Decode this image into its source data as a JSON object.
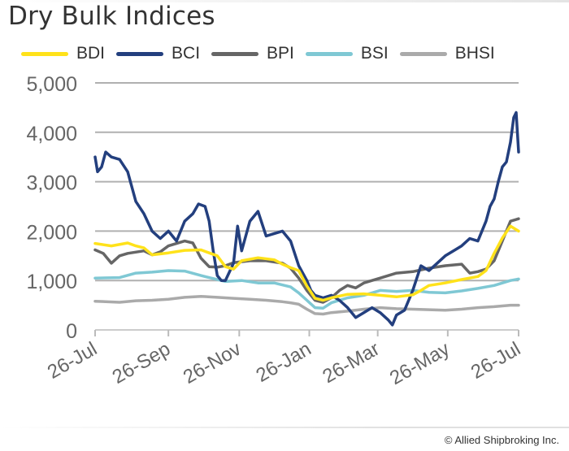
{
  "chart_data": {
    "type": "line",
    "title": "Dry Bulk Indices",
    "xlabel": "",
    "ylabel": "",
    "ylim": [
      0,
      5000
    ],
    "yticks": [
      0,
      1000,
      2000,
      3000,
      4000,
      5000
    ],
    "ytick_labels": [
      "0",
      "1,000",
      "2,000",
      "3,000",
      "4,000",
      "5,000"
    ],
    "xtick_labels": [
      "26-Jul",
      "26-Sep",
      "26-Nov",
      "26-Jan",
      "26-Mar",
      "26-May",
      "26-Jul"
    ],
    "xtick_weeks": [
      0,
      9,
      17.7,
      26.3,
      34.7,
      43.3,
      52
    ],
    "grid": "horizontal",
    "legend_position": "top",
    "series": [
      {
        "name": "BDI",
        "color": "#FFE21A",
        "points": [
          [
            0,
            1750
          ],
          [
            2,
            1700
          ],
          [
            4,
            1760
          ],
          [
            5,
            1700
          ],
          [
            6,
            1660
          ],
          [
            7,
            1520
          ],
          [
            9,
            1560
          ],
          [
            11,
            1610
          ],
          [
            13,
            1620
          ],
          [
            14,
            1560
          ],
          [
            15,
            1500
          ],
          [
            16,
            1280
          ],
          [
            17,
            1230
          ],
          [
            18,
            1400
          ],
          [
            20,
            1460
          ],
          [
            22,
            1420
          ],
          [
            23,
            1330
          ],
          [
            24,
            1260
          ],
          [
            25,
            1200
          ],
          [
            26,
            890
          ],
          [
            27,
            640
          ],
          [
            28,
            600
          ],
          [
            29,
            650
          ],
          [
            31,
            720
          ],
          [
            33,
            730
          ],
          [
            35,
            700
          ],
          [
            37,
            670
          ],
          [
            39,
            710
          ],
          [
            40,
            800
          ],
          [
            41,
            900
          ],
          [
            43,
            950
          ],
          [
            45,
            1020
          ],
          [
            47,
            1080
          ],
          [
            48,
            1200
          ],
          [
            49,
            1550
          ],
          [
            50,
            1860
          ],
          [
            51,
            2100
          ],
          [
            52,
            2000
          ]
        ]
      },
      {
        "name": "BCI",
        "color": "#233F7E",
        "points": [
          [
            0,
            3500
          ],
          [
            0.3,
            3200
          ],
          [
            0.8,
            3300
          ],
          [
            1.3,
            3600
          ],
          [
            2,
            3500
          ],
          [
            3,
            3450
          ],
          [
            4,
            3200
          ],
          [
            5,
            2600
          ],
          [
            6,
            2350
          ],
          [
            7,
            2000
          ],
          [
            8,
            1850
          ],
          [
            9,
            2000
          ],
          [
            10,
            1800
          ],
          [
            11,
            2200
          ],
          [
            12,
            2350
          ],
          [
            12.7,
            2550
          ],
          [
            13.5,
            2500
          ],
          [
            14,
            2200
          ],
          [
            14.5,
            1600
          ],
          [
            15,
            1100
          ],
          [
            15.5,
            1000
          ],
          [
            16,
            1000
          ],
          [
            17,
            1350
          ],
          [
            17.5,
            2100
          ],
          [
            18,
            1600
          ],
          [
            19,
            2200
          ],
          [
            20,
            2400
          ],
          [
            21,
            1900
          ],
          [
            22,
            1950
          ],
          [
            23,
            2000
          ],
          [
            24,
            1800
          ],
          [
            25,
            1300
          ],
          [
            26,
            1000
          ],
          [
            26.5,
            800
          ],
          [
            27,
            700
          ],
          [
            28,
            650
          ],
          [
            29,
            700
          ],
          [
            30,
            600
          ],
          [
            31,
            450
          ],
          [
            32,
            250
          ],
          [
            33,
            350
          ],
          [
            34,
            450
          ],
          [
            35,
            350
          ],
          [
            36,
            200
          ],
          [
            36.5,
            100
          ],
          [
            37,
            300
          ],
          [
            38,
            400
          ],
          [
            39,
            800
          ],
          [
            40,
            1300
          ],
          [
            41,
            1200
          ],
          [
            42,
            1350
          ],
          [
            43,
            1500
          ],
          [
            44,
            1600
          ],
          [
            45,
            1700
          ],
          [
            46,
            1850
          ],
          [
            47,
            1800
          ],
          [
            48,
            2200
          ],
          [
            48.5,
            2500
          ],
          [
            49,
            2650
          ],
          [
            49.5,
            3000
          ],
          [
            50,
            3300
          ],
          [
            50.5,
            3400
          ],
          [
            51,
            3800
          ],
          [
            51.4,
            4300
          ],
          [
            51.7,
            4400
          ],
          [
            52,
            3600
          ]
        ]
      },
      {
        "name": "BPI",
        "color": "#666666",
        "points": [
          [
            0,
            1620
          ],
          [
            1,
            1550
          ],
          [
            2,
            1350
          ],
          [
            3,
            1500
          ],
          [
            4,
            1550
          ],
          [
            6,
            1600
          ],
          [
            7,
            1520
          ],
          [
            8,
            1580
          ],
          [
            9,
            1700
          ],
          [
            11,
            1800
          ],
          [
            12,
            1760
          ],
          [
            13,
            1450
          ],
          [
            14,
            1280
          ],
          [
            15,
            1270
          ],
          [
            16,
            1300
          ],
          [
            17,
            1360
          ],
          [
            19,
            1400
          ],
          [
            21,
            1400
          ],
          [
            23,
            1350
          ],
          [
            24,
            1250
          ],
          [
            25,
            1050
          ],
          [
            26,
            800
          ],
          [
            27,
            600
          ],
          [
            28,
            560
          ],
          [
            29,
            650
          ],
          [
            30,
            800
          ],
          [
            31,
            900
          ],
          [
            32,
            850
          ],
          [
            33,
            950
          ],
          [
            35,
            1050
          ],
          [
            37,
            1150
          ],
          [
            39,
            1180
          ],
          [
            41,
            1250
          ],
          [
            43,
            1300
          ],
          [
            45,
            1330
          ],
          [
            46,
            1150
          ],
          [
            47,
            1180
          ],
          [
            48,
            1230
          ],
          [
            49,
            1400
          ],
          [
            50,
            1800
          ],
          [
            51,
            2200
          ],
          [
            52,
            2250
          ]
        ]
      },
      {
        "name": "BSI",
        "color": "#7FC8D4",
        "points": [
          [
            0,
            1050
          ],
          [
            3,
            1060
          ],
          [
            5,
            1150
          ],
          [
            7,
            1170
          ],
          [
            9,
            1200
          ],
          [
            11,
            1190
          ],
          [
            13,
            1100
          ],
          [
            14,
            1060
          ],
          [
            16,
            980
          ],
          [
            18,
            1000
          ],
          [
            20,
            950
          ],
          [
            22,
            950
          ],
          [
            24,
            870
          ],
          [
            25,
            750
          ],
          [
            26,
            600
          ],
          [
            27,
            450
          ],
          [
            28,
            440
          ],
          [
            29,
            550
          ],
          [
            31,
            650
          ],
          [
            33,
            700
          ],
          [
            35,
            800
          ],
          [
            37,
            780
          ],
          [
            39,
            800
          ],
          [
            41,
            760
          ],
          [
            43,
            750
          ],
          [
            45,
            790
          ],
          [
            47,
            840
          ],
          [
            49,
            900
          ],
          [
            51,
            1000
          ],
          [
            52,
            1030
          ]
        ]
      },
      {
        "name": "BHSI",
        "color": "#AAAAAA",
        "points": [
          [
            0,
            580
          ],
          [
            3,
            560
          ],
          [
            5,
            590
          ],
          [
            7,
            600
          ],
          [
            9,
            620
          ],
          [
            11,
            660
          ],
          [
            13,
            680
          ],
          [
            15,
            660
          ],
          [
            17,
            640
          ],
          [
            19,
            620
          ],
          [
            21,
            600
          ],
          [
            23,
            570
          ],
          [
            24,
            550
          ],
          [
            25,
            520
          ],
          [
            26,
            420
          ],
          [
            27,
            330
          ],
          [
            28,
            320
          ],
          [
            29,
            350
          ],
          [
            31,
            380
          ],
          [
            33,
            420
          ],
          [
            35,
            450
          ],
          [
            37,
            430
          ],
          [
            39,
            420
          ],
          [
            41,
            410
          ],
          [
            43,
            400
          ],
          [
            45,
            420
          ],
          [
            47,
            450
          ],
          [
            49,
            470
          ],
          [
            51,
            500
          ],
          [
            52,
            500
          ]
        ]
      }
    ]
  },
  "footer": "© Allied Shipbroking Inc."
}
